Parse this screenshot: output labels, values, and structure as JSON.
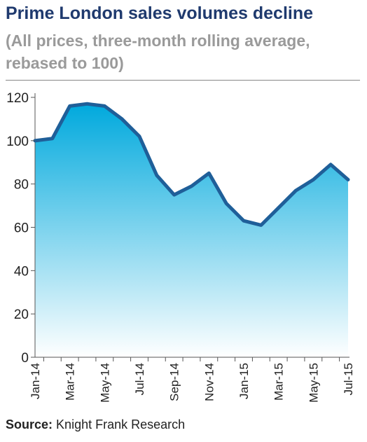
{
  "title": "Prime London sales volumes decline",
  "subtitle": "(All prices, three-month rolling average, rebased to 100)",
  "source": {
    "label": "Source:",
    "text": "Knight Frank Research"
  },
  "colors": {
    "title": "#1f3a6e",
    "line": "#1f5f99",
    "area_top": "#00a9dd",
    "area_bottom": "#ffffff"
  },
  "chart_data": {
    "type": "area",
    "title": "Prime London sales volumes decline",
    "xlabel": "",
    "ylabel": "",
    "ylim": [
      0,
      120
    ],
    "yticks": [
      0,
      20,
      40,
      60,
      80,
      100,
      120
    ],
    "grid": false,
    "x": [
      "Jan-14",
      "Feb-14",
      "Mar-14",
      "Apr-14",
      "May-14",
      "Jun-14",
      "Jul-14",
      "Aug-14",
      "Sep-14",
      "Oct-14",
      "Nov-14",
      "Dec-14",
      "Jan-15",
      "Feb-15",
      "Mar-15",
      "Apr-15",
      "May-15",
      "Jun-15",
      "Jul-15"
    ],
    "tick_labels": [
      "Jan-14",
      "Mar-14",
      "May-14",
      "Jul-14",
      "Sep-14",
      "Nov-14",
      "Jan-15",
      "Mar-15",
      "May-15",
      "Jul-15"
    ],
    "series": [
      {
        "values": [
          100,
          101,
          116,
          117,
          116,
          110,
          102,
          84,
          75,
          79,
          85,
          71,
          63,
          61,
          69,
          77,
          82,
          89,
          82
        ]
      }
    ]
  }
}
